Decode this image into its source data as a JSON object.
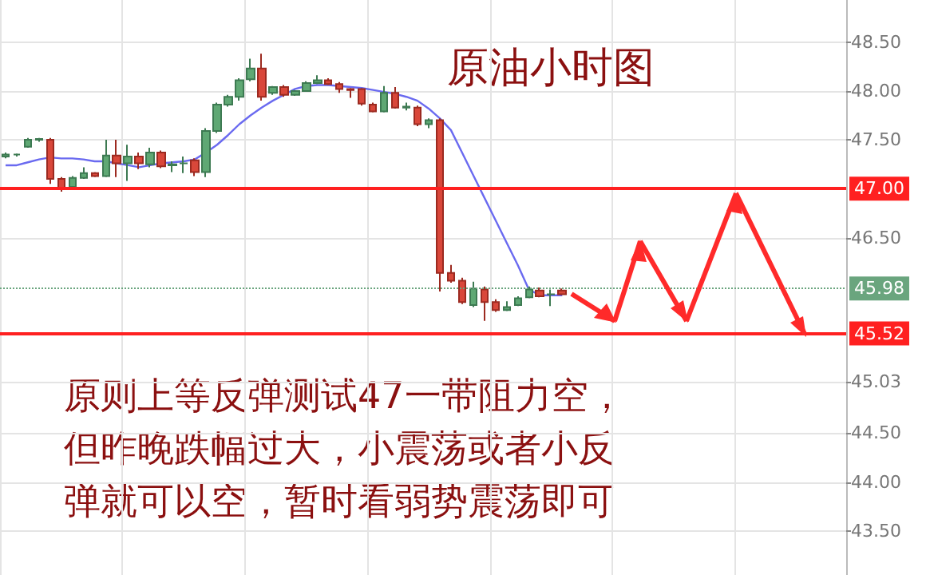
{
  "chart_data": {
    "type": "candlestick",
    "title": "原油小时图",
    "annotations": [
      "原则上等反弹测试47一带阻力空，但昨晚跌幅过大，小震荡或者小反弹就可以空，暂时看弱势震荡即可"
    ],
    "categories": [
      null,
      null,
      null,
      null,
      null,
      null,
      null,
      null,
      null,
      null,
      null,
      null,
      null,
      null,
      null,
      null,
      null,
      null,
      null,
      null,
      null,
      null,
      null,
      null,
      null,
      null,
      null,
      null,
      null,
      null,
      null,
      null,
      null,
      null,
      null,
      null,
      null,
      null,
      null,
      null,
      null,
      null,
      null,
      null,
      null,
      null,
      null,
      null,
      null,
      null,
      null,
      null,
      null,
      null,
      null,
      null,
      null,
      null,
      null,
      null,
      null,
      null,
      null,
      null,
      null,
      null,
      null,
      null,
      null,
      null,
      null,
      null,
      null,
      null,
      null,
      null
    ],
    "ohlc": [
      [
        47.33,
        47.37,
        47.31,
        47.35
      ],
      [
        47.35,
        47.36,
        47.33,
        47.35
      ],
      [
        47.43,
        47.52,
        47.42,
        47.5
      ],
      [
        47.5,
        47.52,
        47.48,
        47.51
      ],
      [
        47.5,
        47.52,
        47.05,
        47.1
      ],
      [
        47.1,
        47.12,
        46.97,
        47.01
      ],
      [
        47.02,
        47.13,
        47.0,
        47.11
      ],
      [
        47.11,
        47.22,
        47.1,
        47.16
      ],
      [
        47.16,
        47.17,
        47.12,
        47.13
      ],
      [
        47.13,
        47.5,
        47.12,
        47.34
      ],
      [
        47.34,
        47.5,
        47.12,
        47.26
      ],
      [
        47.26,
        47.45,
        47.08,
        47.33
      ],
      [
        47.33,
        47.37,
        47.2,
        47.26
      ],
      [
        47.25,
        47.42,
        47.22,
        47.37
      ],
      [
        47.37,
        47.39,
        47.21,
        47.23
      ],
      [
        47.24,
        47.28,
        47.17,
        47.25
      ],
      [
        47.26,
        47.33,
        47.16,
        47.26
      ],
      [
        47.29,
        47.31,
        47.13,
        47.17
      ],
      [
        47.17,
        47.62,
        47.12,
        47.59
      ],
      [
        47.59,
        47.88,
        47.57,
        47.86
      ],
      [
        47.86,
        47.96,
        47.84,
        47.94
      ],
      [
        47.94,
        48.13,
        47.9,
        48.11
      ],
      [
        48.12,
        48.33,
        48.1,
        48.23
      ],
      [
        48.23,
        48.38,
        47.9,
        47.94
      ],
      [
        47.98,
        48.05,
        47.96,
        48.04
      ],
      [
        48.04,
        48.06,
        47.94,
        47.96
      ],
      [
        47.96,
        48.01,
        47.95,
        48.0
      ],
      [
        48.0,
        48.1,
        47.99,
        48.08
      ],
      [
        48.08,
        48.16,
        48.07,
        48.11
      ],
      [
        48.11,
        48.13,
        48.06,
        48.07
      ],
      [
        48.07,
        48.09,
        47.98,
        48.02
      ],
      [
        48.02,
        48.03,
        47.93,
        48.01
      ],
      [
        48.02,
        48.03,
        47.85,
        47.87
      ],
      [
        47.86,
        47.88,
        47.78,
        47.79
      ],
      [
        47.79,
        48.05,
        47.78,
        47.98
      ],
      [
        47.98,
        48.04,
        47.82,
        47.83
      ],
      [
        47.83,
        47.88,
        47.8,
        47.84
      ],
      [
        47.83,
        47.85,
        47.64,
        47.66
      ],
      [
        47.66,
        47.72,
        47.62,
        47.7
      ],
      [
        47.7,
        47.72,
        45.95,
        46.14
      ],
      [
        46.14,
        46.22,
        46.04,
        46.06
      ],
      [
        46.06,
        46.09,
        45.82,
        45.84
      ],
      [
        45.81,
        46.05,
        45.79,
        45.98
      ],
      [
        45.97,
        46.0,
        45.65,
        45.84
      ],
      [
        45.84,
        45.87,
        45.74,
        45.76
      ],
      [
        45.76,
        45.85,
        45.75,
        45.79
      ],
      [
        45.81,
        45.9,
        45.8,
        45.88
      ],
      [
        45.89,
        46.0,
        45.88,
        45.97
      ],
      [
        45.96,
        45.99,
        45.89,
        45.9
      ],
      [
        45.92,
        45.97,
        45.8,
        45.92
      ],
      [
        45.96,
        45.98,
        45.91,
        45.92
      ],
      null,
      null,
      null,
      null,
      null,
      null,
      null,
      null,
      null,
      null,
      null,
      null,
      null,
      null,
      null,
      null,
      null,
      null,
      null,
      null,
      null,
      null,
      null,
      null,
      null
    ],
    "series": [
      {
        "type": "line",
        "color": "#6a6af0",
        "values": [
          47.24,
          47.24,
          47.27,
          47.3,
          47.32,
          47.31,
          47.31,
          47.3,
          47.28,
          47.28,
          47.26,
          47.24,
          47.22,
          47.24,
          47.26,
          47.27,
          47.28,
          47.3,
          47.37,
          47.45,
          47.55,
          47.66,
          47.75,
          47.83,
          47.9,
          47.96,
          48.02,
          48.05,
          48.06,
          48.06,
          48.05,
          48.04,
          48.03,
          48.01,
          47.99,
          47.97,
          47.94,
          47.9,
          47.82,
          47.72,
          47.6,
          47.37,
          47.14,
          46.91,
          46.68,
          46.45,
          46.22,
          45.97,
          45.91,
          45.91,
          45.91,
          null,
          null,
          null,
          null,
          null,
          null,
          null,
          null,
          null,
          null,
          null,
          null,
          null,
          null,
          null,
          null,
          null,
          null,
          null,
          null,
          null,
          null,
          null,
          null,
          null
        ]
      }
    ],
    "ylim": [
      43.05,
      48.93
    ],
    "yticks": [
      {
        "value": 43.5,
        "label": "43.50"
      },
      {
        "value": 44,
        "label": "44.00"
      },
      {
        "value": 44.5,
        "label": "44.50"
      },
      {
        "value": 45.03,
        "label": "45.03"
      },
      {
        "value": 46.5,
        "label": "46.50"
      },
      {
        "value": 47.5,
        "label": "47.50"
      },
      {
        "value": 48,
        "label": "48.00"
      },
      {
        "value": 48.5,
        "label": "48.50"
      }
    ],
    "ref_lines": [
      {
        "axis": "y",
        "value": 47,
        "label": "47.00",
        "color": "#ff2020"
      },
      {
        "axis": "y",
        "value": 45.98,
        "label": "45.98",
        "color": "#6aa57e",
        "line_style": "dotted"
      },
      {
        "axis": "y",
        "value": 45.52,
        "label": "45.52",
        "color": "#ff2020"
      }
    ],
    "grid": true
  }
}
